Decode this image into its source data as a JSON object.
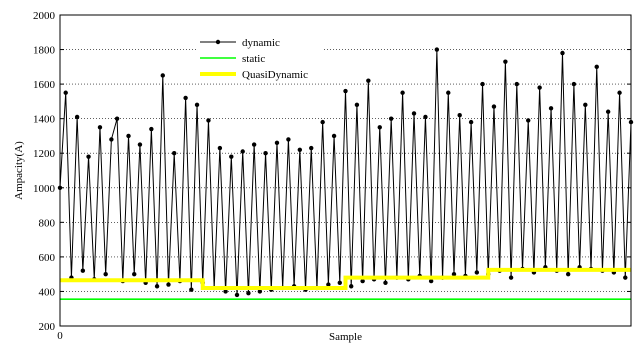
{
  "chart_data": {
    "type": "line",
    "title": "",
    "xlabel": "Sample",
    "ylabel": "Ampacity(A)",
    "ylim": [
      200,
      2000
    ],
    "yticks": [
      200,
      400,
      600,
      800,
      1000,
      1200,
      1400,
      1600,
      1800,
      2000
    ],
    "xticks": [
      0
    ],
    "xlim": [
      0,
      600
    ],
    "grid": "horizontal",
    "legend_position": "top-center",
    "series": [
      {
        "name": "dynamic",
        "color": "#000000",
        "marker": "dot",
        "x": [
          0,
          6,
          12,
          18,
          24,
          30,
          36,
          42,
          48,
          54,
          60,
          66,
          72,
          78,
          84,
          90,
          96,
          102,
          108,
          114,
          120,
          126,
          132,
          138,
          144,
          150,
          156,
          162,
          168,
          174,
          180,
          186,
          192,
          198,
          204,
          210,
          216,
          222,
          228,
          234,
          240,
          246,
          252,
          258,
          264,
          270,
          276,
          282,
          288,
          294,
          300,
          306,
          312,
          318,
          324,
          330,
          336,
          342,
          348,
          354,
          360,
          366,
          372,
          378,
          384,
          390,
          396,
          402,
          408,
          414,
          420,
          426,
          432,
          438,
          444,
          450,
          456,
          462,
          468,
          474,
          480,
          486,
          492,
          498,
          504,
          510,
          516,
          522,
          528,
          534,
          540,
          546,
          552,
          558,
          564,
          570,
          576,
          582,
          588,
          594,
          600
        ],
        "values": [
          1000,
          1550,
          480,
          1410,
          520,
          1180,
          470,
          1350,
          500,
          1280,
          1400,
          460,
          1300,
          500,
          1250,
          450,
          1340,
          430,
          1650,
          440,
          1200,
          460,
          1520,
          410,
          1480,
          450,
          1390,
          420,
          1230,
          400,
          1180,
          380,
          1210,
          390,
          1250,
          400,
          1200,
          410,
          1260,
          420,
          1280,
          430,
          1220,
          410,
          1230,
          420,
          1380,
          440,
          1300,
          450,
          1560,
          430,
          1480,
          460,
          1620,
          470,
          1350,
          450,
          1400,
          480,
          1550,
          470,
          1430,
          490,
          1410,
          460,
          1800,
          480,
          1550,
          500,
          1420,
          490,
          1380,
          510,
          1600,
          500,
          1470,
          520,
          1730,
          480,
          1600,
          530,
          1390,
          510,
          1580,
          540,
          1460,
          520,
          1780,
          500,
          1600,
          540,
          1480,
          530,
          1700,
          520,
          1440,
          510,
          1550,
          480,
          1380
        ]
      },
      {
        "name": "static",
        "color": "#00ff00",
        "x": [
          0,
          600
        ],
        "values": [
          355,
          355
        ]
      },
      {
        "name": "QuasiDynamic",
        "color": "#ffff00",
        "x": [
          0,
          150,
          150,
          300,
          300,
          450,
          450,
          600
        ],
        "values": [
          465,
          465,
          420,
          420,
          480,
          480,
          525,
          525
        ]
      }
    ]
  }
}
